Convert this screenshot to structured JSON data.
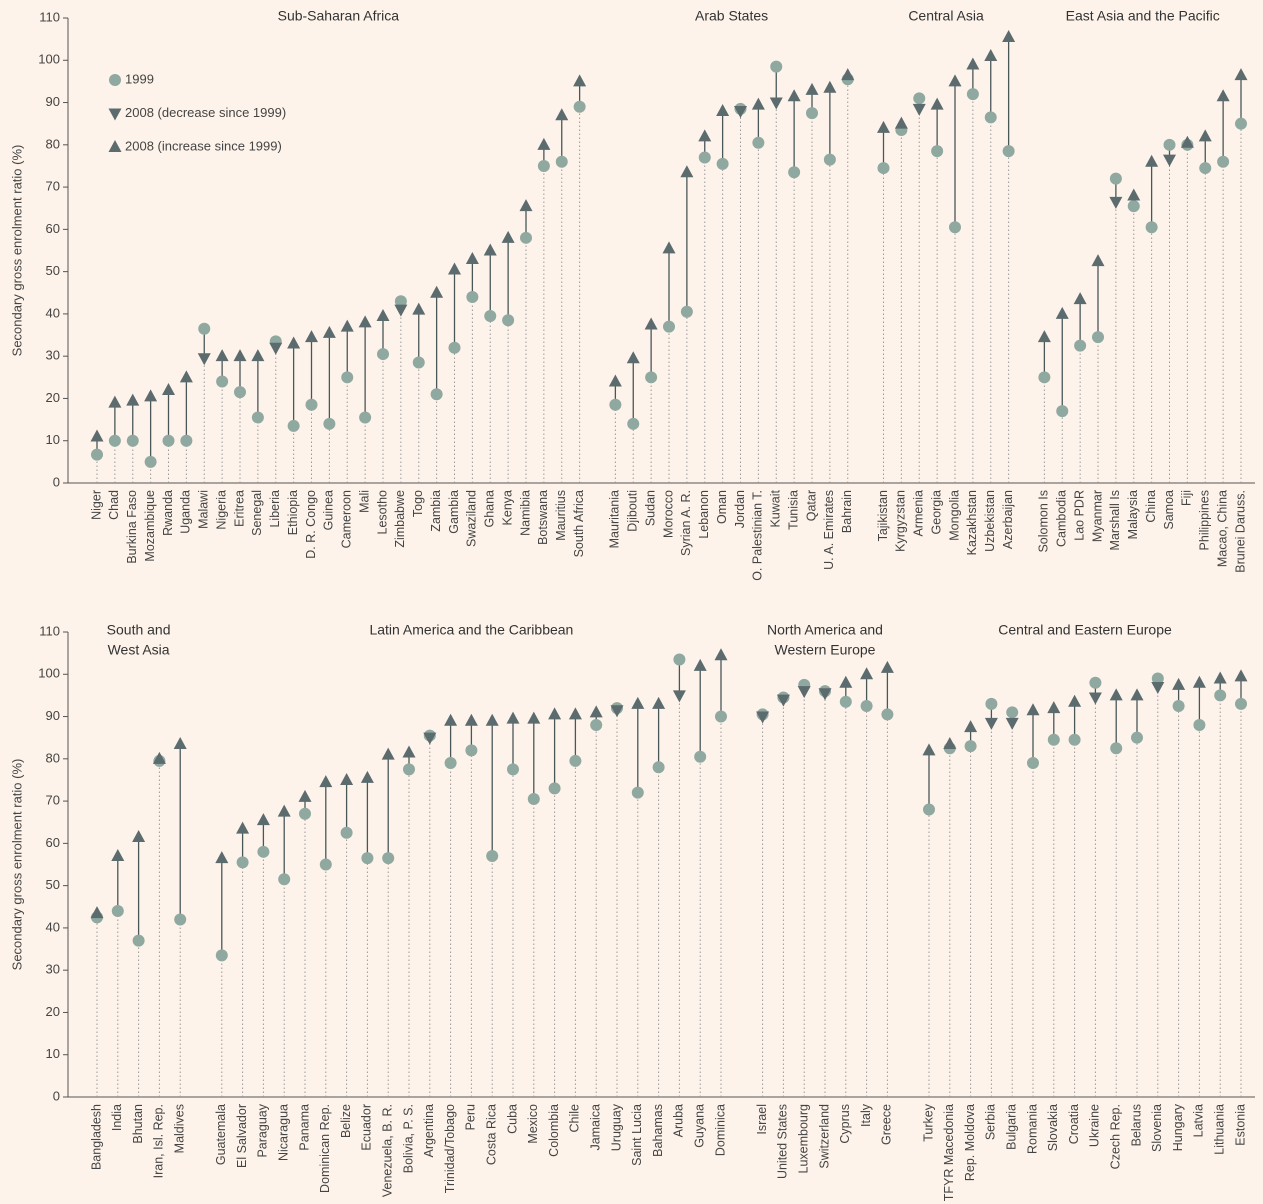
{
  "chart_data": [
    {
      "type": "dot",
      "ylabel": "Secondary gross enrolment ratio (%)",
      "ylim": [
        0,
        110
      ],
      "yticks": [
        0,
        10,
        20,
        30,
        40,
        50,
        60,
        70,
        80,
        90,
        100,
        110
      ],
      "legend": "upper left",
      "groups": [
        {
          "name": [
            "Sub-Saharan Africa"
          ],
          "categories": [
            "Niger",
            "Chad",
            "Burkina Faso",
            "Mozambique",
            "Rwanda",
            "Uganda",
            "Malawi",
            "Nigeria",
            "Eritrea",
            "Senegal",
            "Liberia",
            "Ethiopia",
            "D. R. Congo",
            "Guinea",
            "Cameroon",
            "Mali",
            "Lesotho",
            "Zimbabwe",
            "Togo",
            "Zambia",
            "Gambia",
            "Swaziland",
            "Ghana",
            "Kenya",
            "Namibia",
            "Botswana",
            "Mauritius",
            "South Africa"
          ]
        },
        {
          "name": [
            "Arab States"
          ],
          "categories": [
            "Mauritania",
            "Djibouti",
            "Sudan",
            "Morocco",
            "Syrian A. R.",
            "Lebanon",
            "Oman",
            "Jordan",
            "O. Palestinian T.",
            "Kuwait",
            "Tunisia",
            "Qatar",
            "U. A. Emirates",
            "Bahrain"
          ]
        },
        {
          "name": [
            "Central Asia"
          ],
          "categories": [
            "Tajikistan",
            "Kyrgyzstan",
            "Armenia",
            "Georgia",
            "Mongolia",
            "Kazakhstan",
            "Uzbekistan",
            "Azerbaijan"
          ]
        },
        {
          "name": [
            "East Asia and the Pacific"
          ],
          "categories": [
            "Solomon Is",
            "Cambodia",
            "Lao PDR",
            "Myanmar",
            "Marshall Is",
            "Malaysia",
            "China",
            "Samoa",
            "Fiji",
            "Philippines",
            "Macao, China",
            "Brunei Daruss."
          ]
        }
      ],
      "series": [
        {
          "name": "1999",
          "color": "#8fa8a0",
          "values": [
            6.7,
            10,
            10,
            5,
            10,
            10,
            36.5,
            24,
            21.5,
            15.5,
            33.5,
            13.5,
            18.5,
            14,
            25,
            15.5,
            30.5,
            43,
            28.5,
            21,
            32,
            44,
            39.5,
            38.5,
            58,
            75,
            76,
            89,
            18.5,
            14,
            25,
            37,
            40.5,
            77,
            75.5,
            88.5,
            80.5,
            98.5,
            73.5,
            87.5,
            76.5,
            95.5,
            74.5,
            83.5,
            91,
            78.5,
            60.5,
            92,
            86.5,
            78.5,
            25,
            17,
            32.5,
            34.5,
            72,
            65.5,
            60.5,
            80,
            80,
            74.5,
            76,
            85
          ]
        },
        {
          "name": "2008 (decrease since 1999)",
          "color": "#5b6b6e",
          "values": [
            null,
            null,
            null,
            null,
            null,
            null,
            29.5,
            null,
            null,
            null,
            32,
            null,
            null,
            null,
            null,
            null,
            null,
            41,
            null,
            null,
            null,
            null,
            null,
            null,
            null,
            null,
            null,
            null,
            null,
            null,
            null,
            null,
            null,
            null,
            null,
            88,
            null,
            90,
            null,
            null,
            null,
            null,
            null,
            null,
            88.5,
            null,
            null,
            null,
            null,
            null,
            null,
            null,
            null,
            null,
            66.5,
            null,
            null,
            76.5,
            null,
            null,
            null,
            null
          ]
        },
        {
          "name": "2008 (increase since 1999)",
          "color": "#5b6b6e",
          "values": [
            11,
            19,
            19.5,
            20.5,
            22,
            25,
            null,
            30,
            30,
            30,
            null,
            33,
            34.5,
            35.5,
            37,
            38,
            39.5,
            null,
            41,
            45,
            50.5,
            53,
            55,
            58,
            65.5,
            80,
            87,
            95,
            24,
            29.5,
            37.5,
            55.5,
            73.5,
            82,
            88,
            null,
            89.5,
            null,
            91.5,
            93,
            93.5,
            96.5,
            84,
            85,
            null,
            89.5,
            95,
            99,
            101,
            105.5,
            34.5,
            40,
            43.5,
            52.5,
            null,
            68,
            76,
            null,
            80.5,
            82,
            91.5,
            96.5
          ]
        }
      ]
    },
    {
      "type": "dot",
      "ylabel": "Secondary gross enrolment ratio (%)",
      "ylim": [
        0,
        110
      ],
      "yticks": [
        0,
        10,
        20,
        30,
        40,
        50,
        60,
        70,
        80,
        90,
        100,
        110
      ],
      "groups": [
        {
          "name": [
            "South and",
            "West Asia"
          ],
          "categories": [
            "Bangladesh",
            "India",
            "Bhutan",
            "Iran, Isl. Rep.",
            "Maldives"
          ]
        },
        {
          "name": [
            "Latin America and the Caribbean"
          ],
          "categories": [
            "Guatemala",
            "El Salvador",
            "Paraguay",
            "Nicaragua",
            "Panama",
            "Dominican Rep.",
            "Belize",
            "Ecuador",
            "Venezuela, B. R.",
            "Bolivia, P. S.",
            "Argentina",
            "Trinidad/Tobago",
            "Peru",
            "Costa Rica",
            "Cuba",
            "Mexico",
            "Colombia",
            "Chile",
            "Jamaica",
            "Uruguay",
            "Saint Lucia",
            "Bahamas",
            "Aruba",
            "Guyana",
            "Dominica"
          ]
        },
        {
          "name": [
            "North America and",
            "Western Europe"
          ],
          "categories": [
            "Israel",
            "United States",
            "Luxembourg",
            "Switzerland",
            "Cyprus",
            "Italy",
            "Greece"
          ]
        },
        {
          "name": [
            "Central and Eastern Europe"
          ],
          "categories": [
            "Turkey",
            "TFYR Macedonia",
            "Rep. Moldova",
            "Serbia",
            "Bulgaria",
            "Romania",
            "Slovakia",
            "Croatia",
            "Ukraine",
            "Czech Rep.",
            "Belarus",
            "Slovenia",
            "Hungary",
            "Latvia",
            "Lithuania",
            "Estonia"
          ]
        }
      ],
      "series": [
        {
          "color": "#8fa8a0",
          "values": [
            42.5,
            44,
            37,
            79.5,
            42,
            33.5,
            55.5,
            58,
            51.5,
            67,
            55,
            62.5,
            56.5,
            56.5,
            77.5,
            85.5,
            79,
            82,
            57,
            77.5,
            70.5,
            73,
            79.5,
            88,
            92,
            72,
            78,
            103.5,
            80.5,
            90,
            90.5,
            94.5,
            97.5,
            96,
            93.5,
            92.5,
            90.5,
            68,
            82.5,
            83,
            93,
            91,
            79,
            84.5,
            84.5,
            98,
            82.5,
            85,
            99,
            92.5,
            88,
            95,
            93
          ]
        },
        {
          "color": "#5b6b6e",
          "values": [
            null,
            null,
            null,
            null,
            null,
            null,
            null,
            null,
            null,
            null,
            null,
            null,
            null,
            null,
            null,
            85,
            null,
            null,
            null,
            null,
            null,
            null,
            null,
            null,
            91.5,
            null,
            null,
            95,
            null,
            null,
            90,
            94,
            96,
            95.5,
            null,
            null,
            null,
            null,
            null,
            null,
            88.5,
            88.5,
            null,
            null,
            null,
            94.5,
            null,
            null,
            97,
            null,
            null,
            null,
            null
          ]
        },
        {
          "color": "#5b6b6e",
          "values": [
            43.5,
            57,
            61.5,
            80,
            83.5,
            56.5,
            63.5,
            65.5,
            67.5,
            71,
            74.5,
            75,
            75.5,
            81,
            81.5,
            null,
            89,
            89,
            89,
            89.5,
            89.5,
            90.5,
            90.5,
            91,
            null,
            93,
            93,
            null,
            102,
            104.5,
            null,
            null,
            null,
            null,
            98,
            100,
            101.5,
            82,
            83.5,
            87.5,
            null,
            null,
            91.5,
            92,
            93.5,
            null,
            95,
            95,
            null,
            97.5,
            98,
            99,
            99.5
          ]
        }
      ]
    }
  ]
}
